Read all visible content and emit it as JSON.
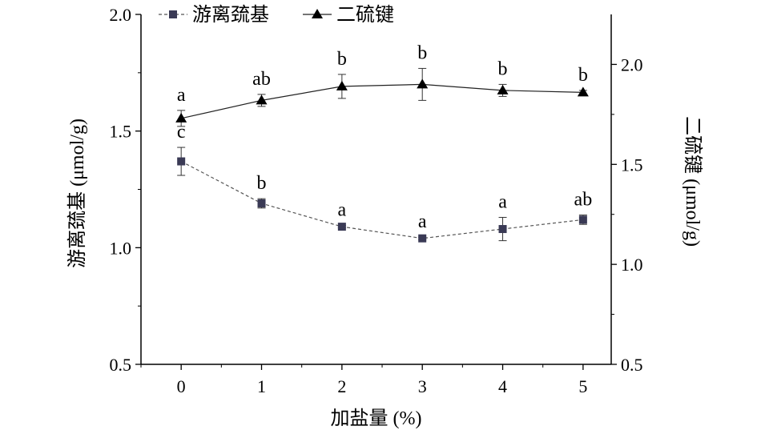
{
  "chart_data": {
    "type": "line",
    "x": [
      0,
      1,
      2,
      3,
      4,
      5
    ],
    "xlabel": "加盐量 (%)",
    "ylabel_left": "游离巯基 (μmol/g)",
    "ylabel_right": "二硫键 (μmol/g)",
    "xlim": [
      -0.5,
      5.35
    ],
    "ylim_left": [
      0.5,
      2.0
    ],
    "ylim_right": [
      0.5,
      2.25
    ],
    "xticks": [
      "0",
      "1",
      "2",
      "3",
      "4",
      "5"
    ],
    "yticks_left": [
      "0.5",
      "1.0",
      "1.5",
      "2.0"
    ],
    "yticks_right": [
      "0.5",
      "1.0",
      "1.5",
      "2.0"
    ],
    "legend_position": "top-left",
    "grid": false,
    "series": [
      {
        "name": "游离巯基",
        "axis": "left",
        "marker": "square",
        "line_style": "dashed",
        "color": "#3a3a55",
        "values": [
          1.37,
          1.19,
          1.09,
          1.04,
          1.08,
          1.12
        ],
        "errors": [
          0.06,
          0.02,
          0.005,
          0.005,
          0.05,
          0.02
        ],
        "labels": [
          "c",
          "b",
          "a",
          "a",
          "a",
          "ab"
        ]
      },
      {
        "name": "二硫键",
        "axis": "right",
        "marker": "triangle",
        "line_style": "solid",
        "color": "#000000",
        "values": [
          1.73,
          1.82,
          1.89,
          1.9,
          1.87,
          1.86
        ],
        "errors": [
          0.04,
          0.03,
          0.06,
          0.08,
          0.03,
          0.01
        ],
        "labels": [
          "a",
          "ab",
          "b",
          "b",
          "b",
          "b"
        ]
      }
    ]
  }
}
